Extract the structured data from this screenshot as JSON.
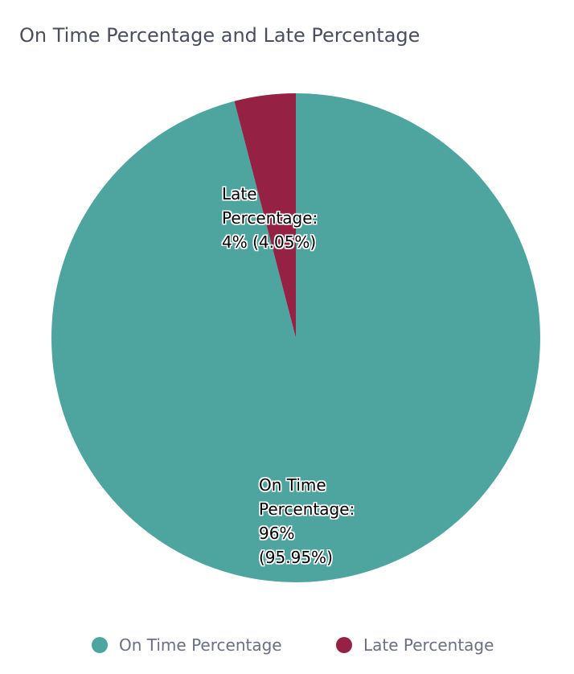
{
  "chart_data": {
    "type": "pie",
    "title": "On Time Percentage and Late Percentage",
    "categories": [
      "On Time Percentage",
      "Late Percentage"
    ],
    "values": [
      95.95,
      4.05
    ],
    "value_labels": [
      "On Time Percentage: 96% (95.95%)",
      "Late Percentage: 4% (4.05%)"
    ],
    "colors": [
      "#4ea59f",
      "#952244"
    ],
    "legend": "bottom"
  }
}
